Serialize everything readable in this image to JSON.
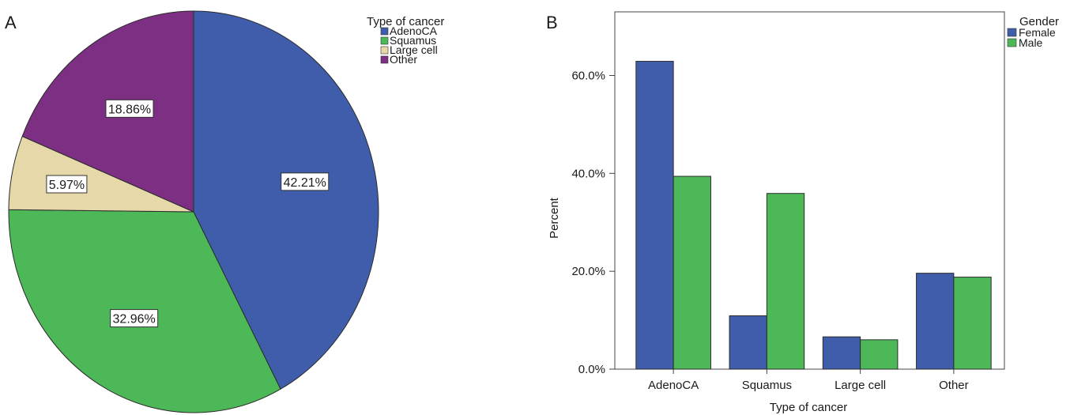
{
  "panel_a": {
    "letter": "A"
  },
  "panel_b": {
    "letter": "B"
  },
  "chart_data": [
    {
      "type": "pie",
      "legend_title": "Type of cancer",
      "legend_position": "top-right",
      "labels": [
        "AdenoCA",
        "Squamus",
        "Large cell",
        "Other"
      ],
      "values": [
        42.21,
        32.96,
        5.97,
        18.86
      ],
      "value_labels": [
        "42.21%",
        "32.96%",
        "5.97%",
        "18.86%"
      ],
      "colors": [
        "#3f5daa",
        "#4cb858",
        "#e6d8a8",
        "#7d2f83"
      ]
    },
    {
      "type": "bar",
      "xlabel": "Type of cancer",
      "ylabel": "Percent",
      "categories": [
        "AdenoCA",
        "Squamus",
        "Large cell",
        "Other"
      ],
      "ylim": [
        0,
        0.73
      ],
      "yticks": [
        0,
        0.2,
        0.4,
        0.6
      ],
      "ytick_labels": [
        "0.0%",
        "20.0%",
        "40.0%",
        "60.0%"
      ],
      "legend_title": "Gender",
      "legend_position": "top-right",
      "grid": false,
      "series": [
        {
          "name": "Female",
          "color": "#3f5daa",
          "values": [
            0.629,
            0.109,
            0.066,
            0.196
          ]
        },
        {
          "name": "Male",
          "color": "#4cb858",
          "values": [
            0.394,
            0.359,
            0.06,
            0.188
          ]
        }
      ]
    }
  ]
}
